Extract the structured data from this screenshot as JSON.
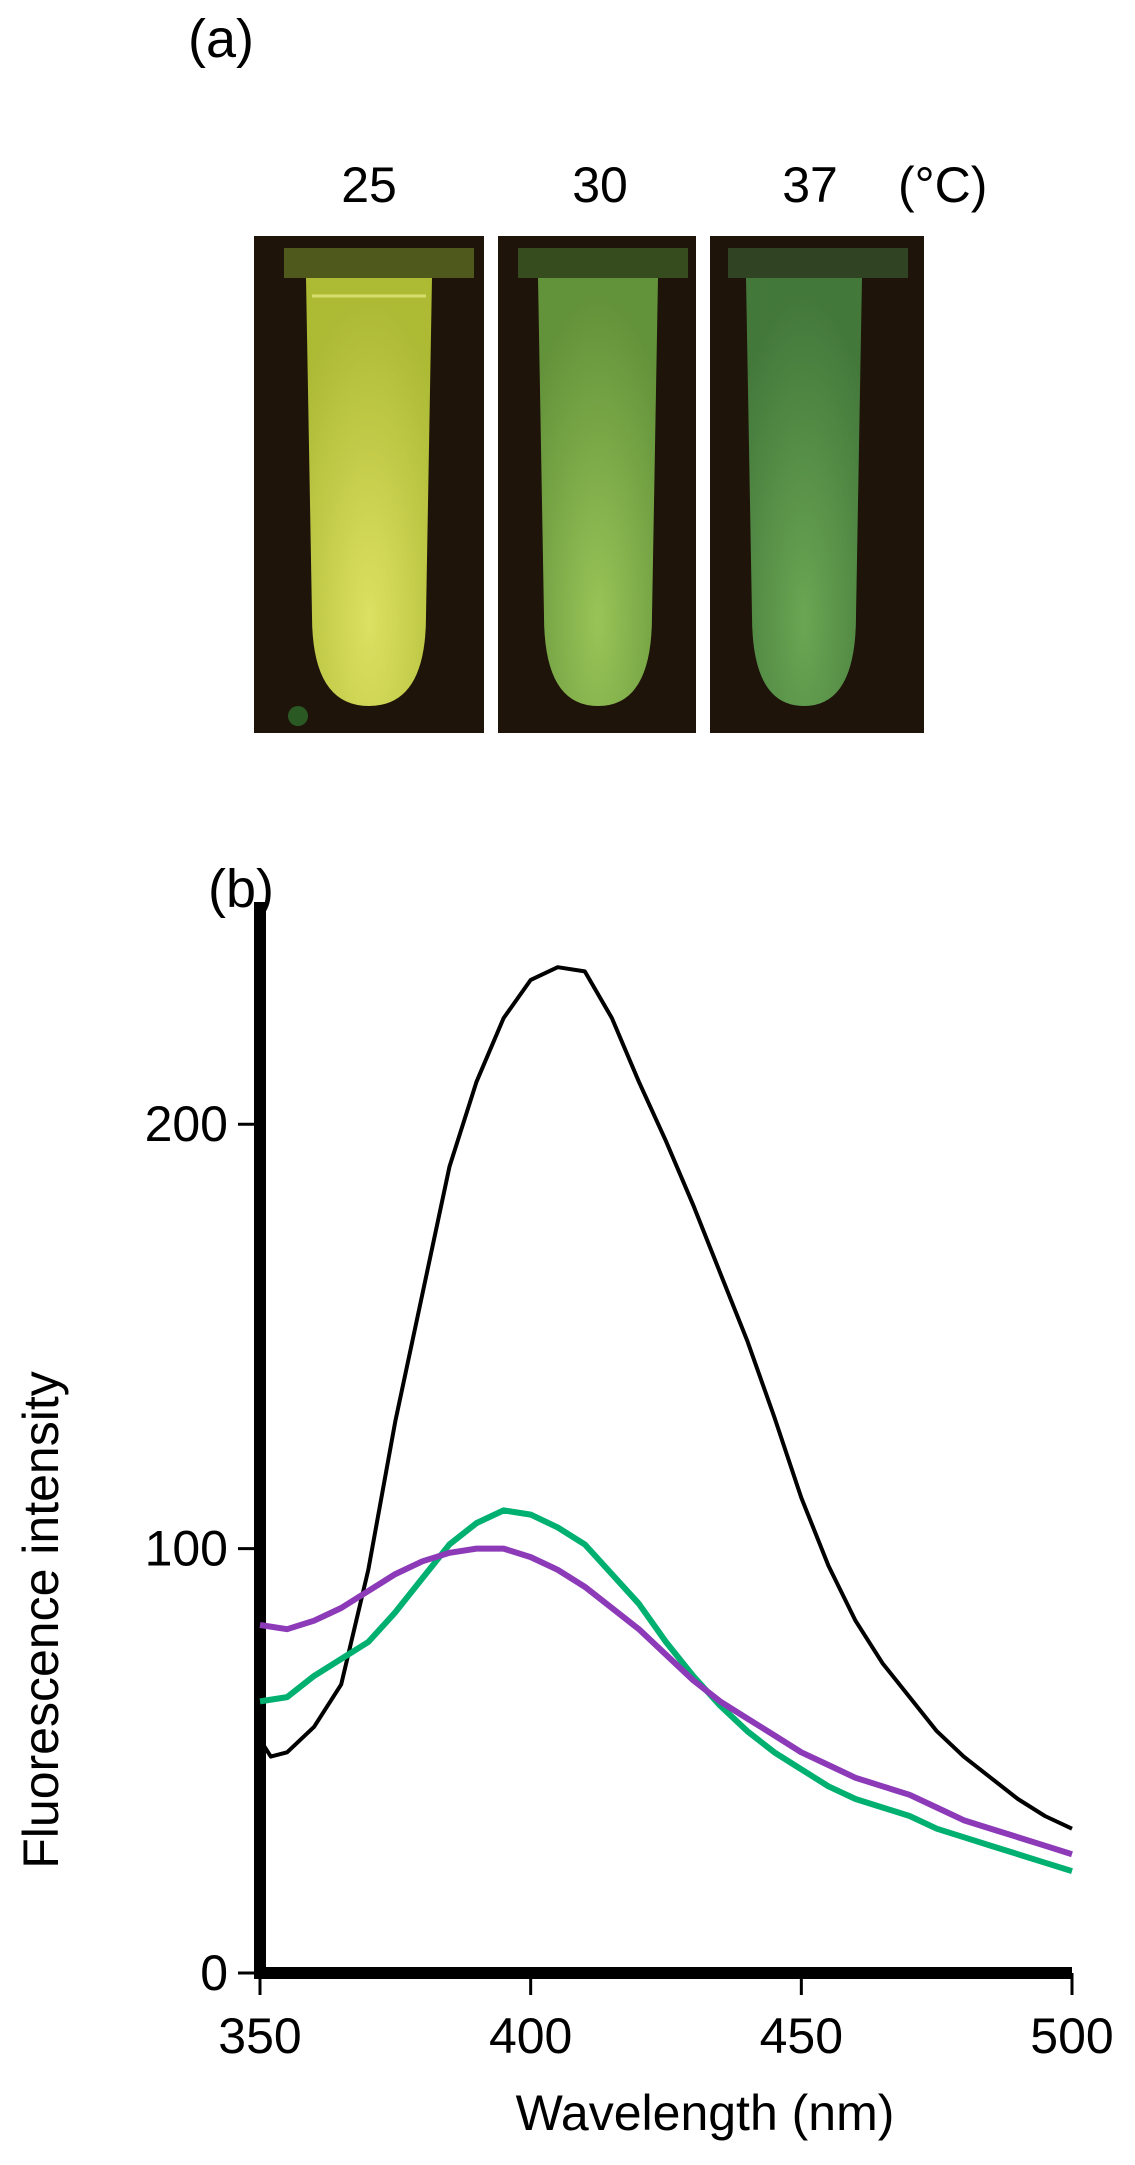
{
  "panel_a": {
    "label": "(a)",
    "unit": "(°C)",
    "tubes": [
      {
        "temperature": "25",
        "color": "#d8e23a",
        "glow": "#eef26a"
      },
      {
        "temperature": "30",
        "color": "#8fc84a",
        "glow": "#a6d860"
      },
      {
        "temperature": "37",
        "color": "#5fb04e",
        "glow": "#77c060"
      }
    ]
  },
  "panel_b": {
    "label": "(b)"
  },
  "chart_data": {
    "type": "line",
    "title": "",
    "xlabel": "Wavelength (nm)",
    "ylabel": "Fluorescence intensity",
    "xlim": [
      350,
      500
    ],
    "ylim": [
      0,
      250
    ],
    "xticks": [
      350,
      400,
      450,
      500
    ],
    "yticks": [
      0,
      100,
      200
    ],
    "grid": false,
    "legend": "none",
    "series": [
      {
        "color": "#000000",
        "x": [
          350,
          352,
          355,
          360,
          365,
          370,
          375,
          380,
          385,
          390,
          395,
          400,
          405,
          410,
          415,
          420,
          425,
          430,
          435,
          440,
          445,
          450,
          455,
          460,
          465,
          470,
          475,
          480,
          485,
          490,
          495,
          500
        ],
        "y": [
          55,
          51,
          52,
          58,
          68,
          95,
          130,
          160,
          190,
          210,
          225,
          234,
          237,
          236,
          225,
          210,
          196,
          181,
          165,
          149,
          131,
          112,
          96,
          83,
          73,
          65,
          57,
          51,
          46,
          41,
          37,
          34
        ]
      },
      {
        "color": "#00b070",
        "x": [
          350,
          355,
          360,
          365,
          370,
          375,
          380,
          385,
          390,
          395,
          400,
          405,
          410,
          415,
          420,
          425,
          430,
          435,
          440,
          445,
          450,
          455,
          460,
          465,
          470,
          475,
          480,
          485,
          490,
          495,
          500
        ],
        "y": [
          64,
          65,
          70,
          74,
          78,
          85,
          93,
          101,
          106,
          109,
          108,
          105,
          101,
          94,
          87,
          78,
          70,
          63,
          57,
          52,
          48,
          44,
          41,
          39,
          37,
          34,
          32,
          30,
          28,
          26,
          24
        ]
      },
      {
        "color": "#8c3ab8",
        "x": [
          350,
          355,
          360,
          365,
          370,
          375,
          380,
          385,
          390,
          395,
          400,
          405,
          410,
          415,
          420,
          425,
          430,
          435,
          440,
          445,
          450,
          455,
          460,
          465,
          470,
          475,
          480,
          485,
          490,
          495,
          500
        ],
        "y": [
          82,
          81,
          83,
          86,
          90,
          94,
          97,
          99,
          100,
          100,
          98,
          95,
          91,
          86,
          81,
          75,
          69,
          64,
          60,
          56,
          52,
          49,
          46,
          44,
          42,
          39,
          36,
          34,
          32,
          30,
          28
        ]
      }
    ]
  }
}
